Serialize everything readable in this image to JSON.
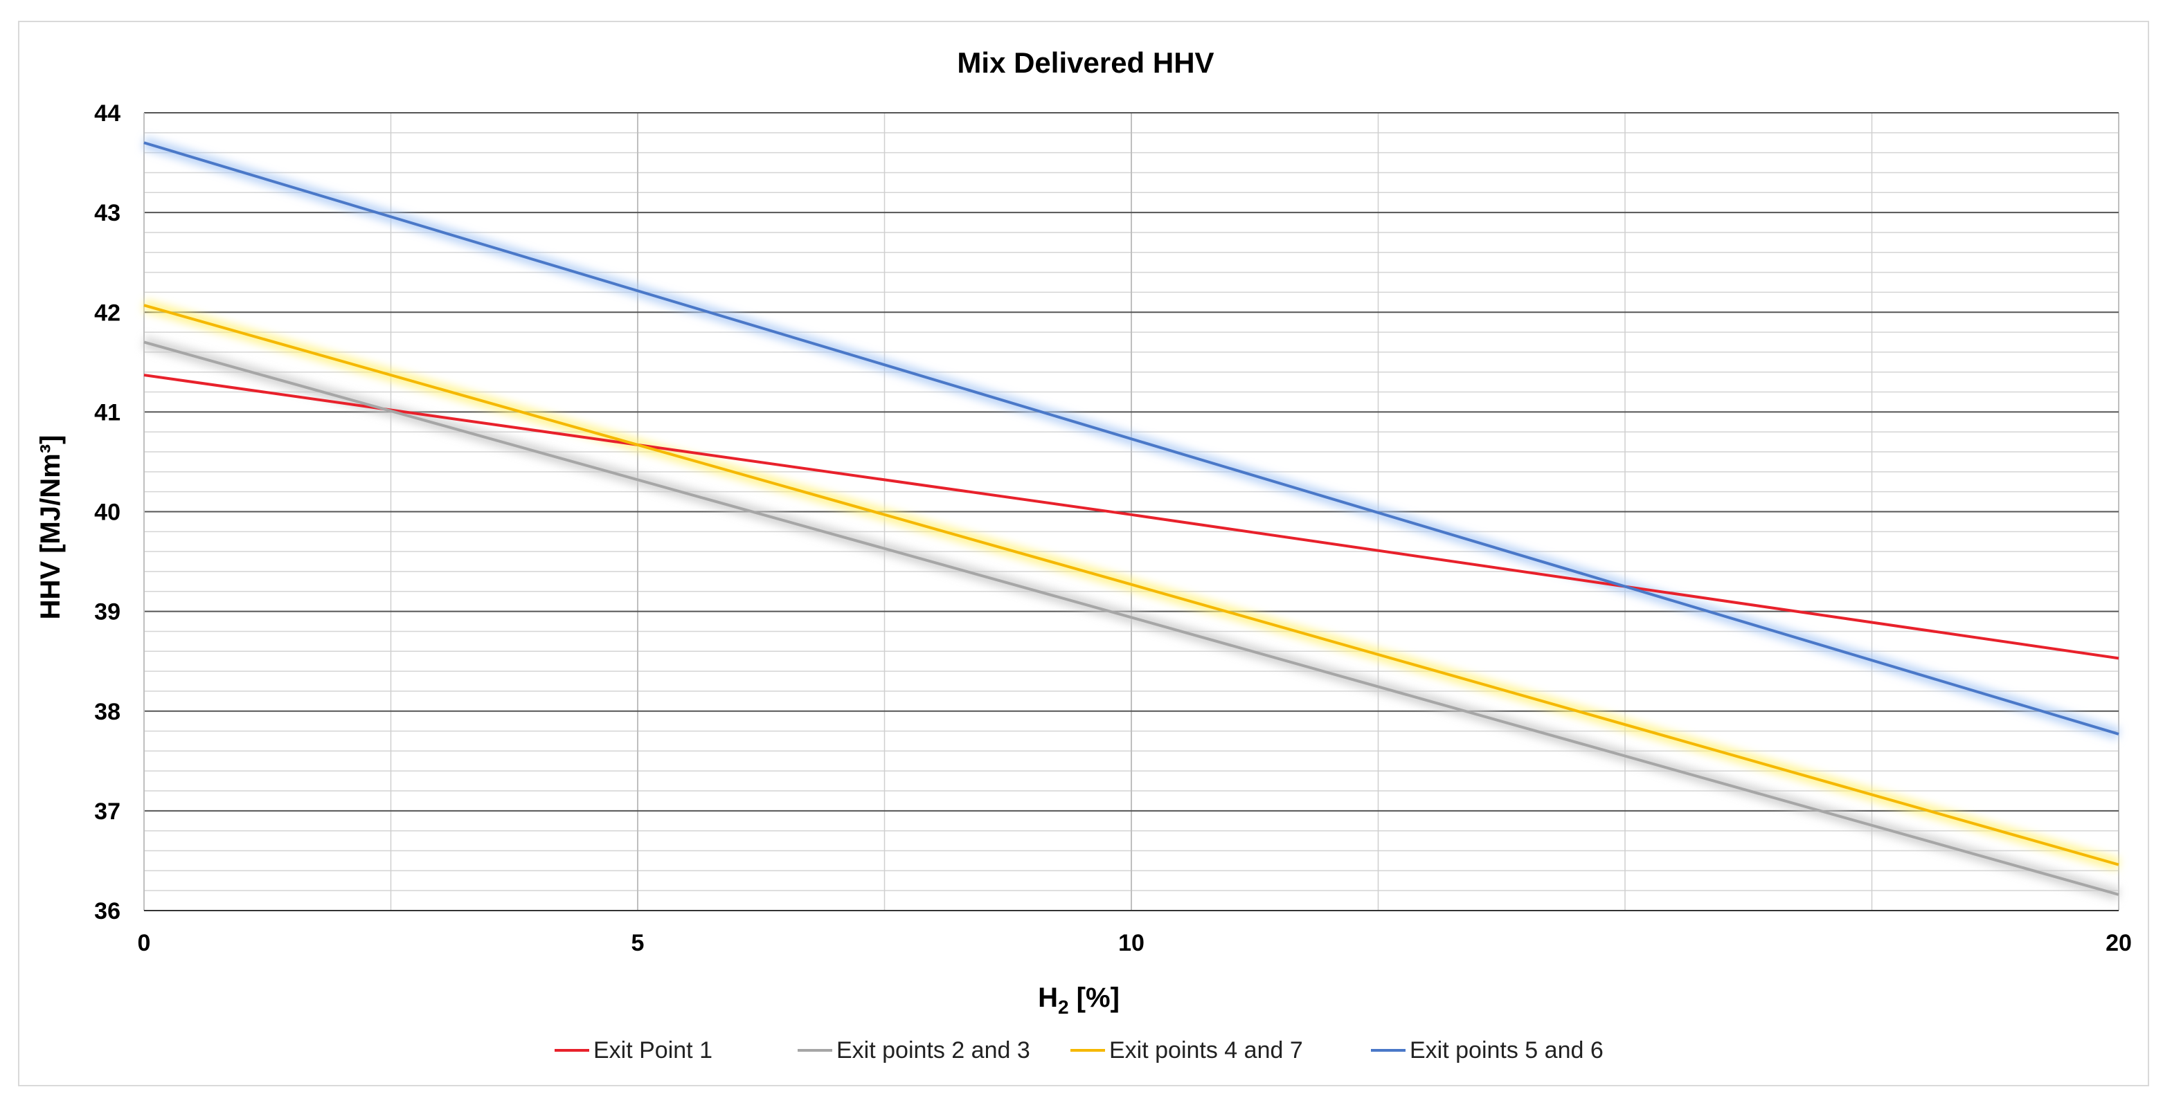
{
  "chart_data": {
    "type": "line",
    "title": "Mix Delivered HHV",
    "xlabel_main": "H",
    "xlabel_sub": "2",
    "xlabel_tail": " [%]",
    "ylabel": "HHV [MJ/Nm³]",
    "xlim": [
      0,
      20
    ],
    "ylim": [
      36,
      44
    ],
    "x_ticks": [
      0,
      5,
      10,
      20
    ],
    "y_ticks": [
      36,
      37,
      38,
      39,
      40,
      41,
      42,
      43,
      44
    ],
    "x_minor_gridlines": [
      2.5,
      7.5,
      12.5,
      15,
      17.5
    ],
    "y_minor_step": 0.2,
    "legend_position": "bottom",
    "series": [
      {
        "name": "Exit Point 1",
        "color": "#e8212b",
        "glow": "#ffffff",
        "x": [
          0,
          10,
          20
        ],
        "y": [
          41.37,
          39.97,
          38.53
        ]
      },
      {
        "name": "Exit points 2 and 3",
        "color": "#a6a6a6",
        "glow": "#c8c8c8",
        "x": [
          0,
          10,
          20
        ],
        "y": [
          41.7,
          38.94,
          36.16
        ]
      },
      {
        "name": "Exit points 4 and 7",
        "color": "#f5b800",
        "glow": "#fff27a",
        "x": [
          0,
          10,
          20
        ],
        "y": [
          42.07,
          39.27,
          36.46
        ]
      },
      {
        "name": "Exit points 5 and 6",
        "color": "#4a78c8",
        "glow": "#a9c8f5",
        "x": [
          0,
          10,
          20
        ],
        "y": [
          43.7,
          40.73,
          37.77
        ]
      }
    ]
  }
}
